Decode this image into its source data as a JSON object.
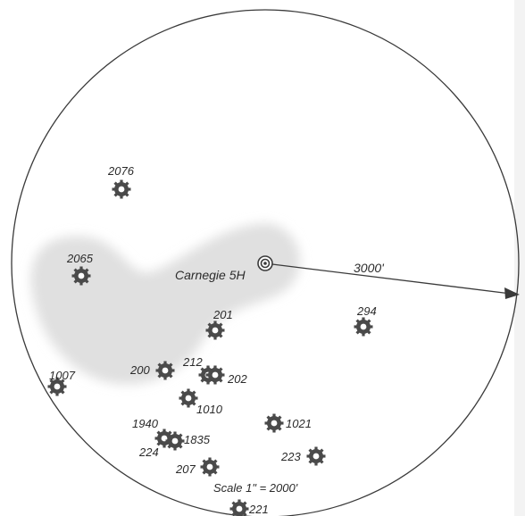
{
  "map": {
    "target_well": "Carnegie 5H",
    "radius_label": "3000'",
    "scale_label": "Scale 1\" = 2000'",
    "colors": {
      "outline": "#3a3a3a",
      "shade": "#e0e0e0",
      "well": "#4a4a4a",
      "text": "#2b2b2b"
    },
    "wells": [
      "2076",
      "2065",
      "201",
      "294",
      "1007",
      "200",
      "212",
      "202",
      "1010",
      "1021",
      "1940",
      "1835",
      "224",
      "223",
      "207",
      "221"
    ]
  }
}
